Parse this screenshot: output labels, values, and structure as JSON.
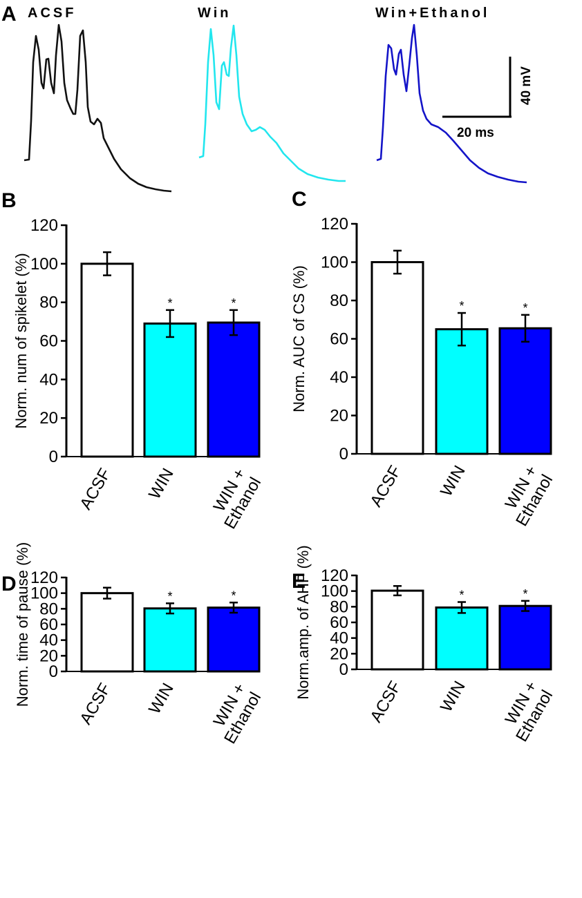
{
  "panel_a": {
    "label": "A",
    "traces": [
      {
        "name": "ACSF",
        "color": "#111111"
      },
      {
        "name": "Win",
        "color": "#22e6ee"
      },
      {
        "name": "Win+Ethanol",
        "color": "#1414c8"
      }
    ],
    "scale_bar": {
      "vertical_label": "40 mV",
      "horizontal_label": "20 ms"
    }
  },
  "chart_data": [
    {
      "panel": "B",
      "type": "bar",
      "ylabel": "Norm. num of spikelet (%)",
      "ylim": [
        0,
        120
      ],
      "yticks": [
        0,
        20,
        40,
        60,
        80,
        100,
        120
      ],
      "categories": [
        "ACSF",
        "WIN",
        "WIN + Ethanol"
      ],
      "category_lines": [
        [
          "ACSF"
        ],
        [
          "WIN"
        ],
        [
          "WIN +",
          "Ethanol"
        ]
      ],
      "values": [
        100,
        69,
        69.5
      ],
      "errors": [
        6,
        7,
        6.5
      ],
      "significance": [
        "",
        "*",
        "*"
      ],
      "colors": [
        "#ffffff",
        "#00ffff",
        "#0000ff"
      ]
    },
    {
      "panel": "C",
      "type": "bar",
      "ylabel": "Norm. AUC of CS (%)",
      "ylim": [
        0,
        120
      ],
      "yticks": [
        0,
        20,
        40,
        60,
        80,
        100,
        120
      ],
      "categories": [
        "ACSF",
        "WIN",
        "WIN + Ethanol"
      ],
      "category_lines": [
        [
          "ACSF"
        ],
        [
          "WIN"
        ],
        [
          "WIN +",
          "Ethanol"
        ]
      ],
      "values": [
        100,
        65,
        65.5
      ],
      "errors": [
        6,
        8.5,
        7
      ],
      "significance": [
        "",
        "*",
        "*"
      ],
      "colors": [
        "#ffffff",
        "#00ffff",
        "#0000ff"
      ]
    },
    {
      "panel": "D",
      "type": "bar",
      "ylabel": "Norm. time of pause (%)",
      "ylim": [
        0,
        120
      ],
      "yticks": [
        0,
        20,
        40,
        60,
        80,
        100,
        120
      ],
      "categories": [
        "ACSF",
        "WIN",
        "WIN + Ethanol"
      ],
      "category_lines": [
        [
          "ACSF"
        ],
        [
          "WIN"
        ],
        [
          "WIN +",
          "Ethanol"
        ]
      ],
      "values": [
        100,
        80.5,
        81.5
      ],
      "errors": [
        7,
        6.5,
        6.5
      ],
      "significance": [
        "",
        "*",
        "*"
      ],
      "colors": [
        "#ffffff",
        "#00ffff",
        "#0000ff"
      ]
    },
    {
      "panel": "E",
      "type": "bar",
      "ylabel": "Norm.amp. of AHP (%)",
      "ylim": [
        0,
        120
      ],
      "yticks": [
        0,
        20,
        40,
        60,
        80,
        100,
        120
      ],
      "categories": [
        "ACSF",
        "WIN",
        "WIN + Ethanol"
      ],
      "category_lines": [
        [
          "ACSF"
        ],
        [
          "WIN"
        ],
        [
          "WIN +",
          "Ethanol"
        ]
      ],
      "values": [
        100.5,
        79,
        81
      ],
      "errors": [
        6,
        7,
        6.5
      ],
      "significance": [
        "",
        "*",
        "*"
      ],
      "colors": [
        "#ffffff",
        "#00ffff",
        "#0000ff"
      ]
    }
  ]
}
